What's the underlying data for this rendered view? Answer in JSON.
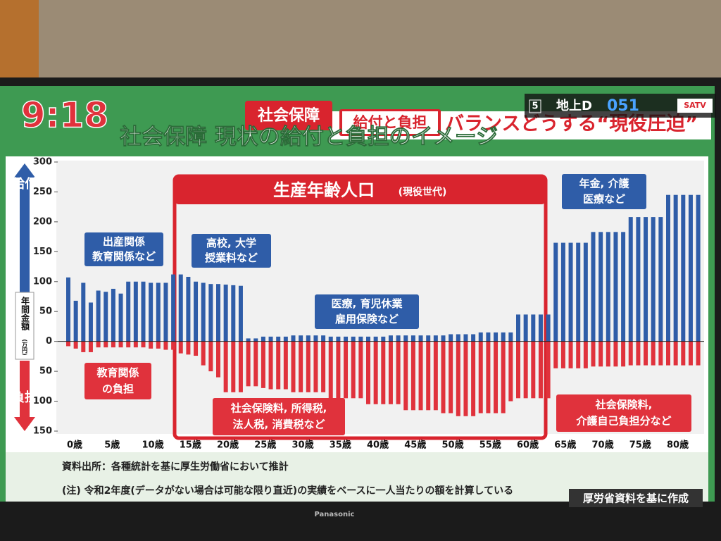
{
  "header": {
    "clock": "9:18",
    "tag": "社会保障",
    "subtag": "給付と負担",
    "headline": "バランスどうする“現役圧迫”",
    "channel_number": "5",
    "channel_type": "地上D",
    "channel": "051",
    "station": "SATV"
  },
  "chart_data": {
    "type": "bar",
    "title": "社会保障 現状の給付と負担のイメージ",
    "ylabel_top": "給付",
    "ylabel_bottom": "負担",
    "ylabel": "年間金額",
    "yunit": "(万円)",
    "categories": [
      "0歳",
      null,
      null,
      null,
      null,
      "5歳",
      null,
      null,
      null,
      null,
      "10歳",
      null,
      null,
      null,
      null,
      "15歳",
      null,
      null,
      null,
      null,
      "20歳",
      null,
      null,
      null,
      null,
      "25歳",
      null,
      null,
      null,
      null,
      "30歳",
      null,
      null,
      null,
      null,
      "35歳",
      null,
      null,
      null,
      null,
      "40歳",
      null,
      null,
      null,
      null,
      "45歳",
      null,
      null,
      null,
      null,
      "50歳",
      null,
      null,
      null,
      null,
      "55歳",
      null,
      null,
      null,
      null,
      "60歳",
      null,
      null,
      null,
      null,
      "65歳",
      null,
      null,
      null,
      null,
      "70歳",
      null,
      null,
      null,
      null,
      "75歳",
      null,
      null,
      null,
      null,
      "80歳",
      null,
      null,
      null,
      null
    ],
    "series": [
      {
        "color": "#2f5da8",
        "values": [
          107,
          68,
          98,
          65,
          85,
          83,
          88,
          80,
          100,
          100,
          100,
          98,
          98,
          98,
          112,
          112,
          108,
          100,
          98,
          96,
          96,
          95,
          94,
          93,
          5,
          5,
          8,
          8,
          8,
          8,
          10,
          10,
          10,
          10,
          10,
          8,
          8,
          8,
          8,
          8,
          8,
          8,
          8,
          10,
          10,
          10,
          10,
          10,
          10,
          10,
          10,
          12,
          12,
          12,
          12,
          15,
          15,
          15,
          15,
          15,
          45,
          45,
          45,
          45,
          45,
          165,
          165,
          165,
          165,
          165,
          183,
          183,
          183,
          183,
          183,
          208,
          208,
          208,
          208,
          208,
          245,
          245,
          245,
          245,
          245
        ]
      },
      {
        "color": "#e0323c",
        "values": [
          -8,
          -12,
          -18,
          -18,
          -10,
          -10,
          -10,
          -10,
          -10,
          -10,
          -10,
          -12,
          -12,
          -14,
          -14,
          -20,
          -22,
          -24,
          -40,
          -50,
          -60,
          -85,
          -85,
          -85,
          -75,
          -75,
          -78,
          -80,
          -80,
          -80,
          -85,
          -85,
          -85,
          -85,
          -85,
          -95,
          -95,
          -95,
          -95,
          -95,
          -105,
          -105,
          -105,
          -105,
          -105,
          -115,
          -115,
          -115,
          -115,
          -115,
          -120,
          -120,
          -125,
          -125,
          -125,
          -120,
          -120,
          -120,
          -120,
          -100,
          -95,
          -95,
          -95,
          -95,
          -95,
          -45,
          -45,
          -45,
          -45,
          -45,
          -42,
          -42,
          -42,
          -42,
          -42,
          -40,
          -40,
          -40,
          -40,
          -40,
          -40,
          -40,
          -40,
          -40,
          -40
        ]
      }
    ],
    "ylim": [
      -150,
      300
    ],
    "yticks": [
      {
        "value": -150,
        "label": "150"
      },
      {
        "value": -100,
        "label": "100"
      },
      {
        "value": -50,
        "label": "50"
      },
      0,
      50,
      100,
      150,
      200,
      250,
      300
    ],
    "grid": false,
    "region_label": "生産年齢人口",
    "region_sublabel": "(現役世代)",
    "annotations": [
      {
        "lines": [
          "出産関係",
          "教育関係など"
        ]
      },
      {
        "lines": [
          "高校, 大学",
          "授業料など"
        ]
      },
      {
        "lines": [
          "医療, 育児休業",
          "雇用保険など"
        ]
      },
      {
        "lines": [
          "年金, 介護",
          "医療など"
        ]
      },
      {
        "lines": [
          "教育関係",
          "の負担"
        ]
      },
      {
        "lines": [
          "社会保険料, 所得税,",
          "法人税, 消費税など"
        ]
      },
      {
        "lines": [
          "社会保険料,",
          "介護自己負担分など"
        ]
      }
    ]
  },
  "footer": {
    "source": "資料出所：各種統計を基に厚生労働省において推計",
    "note": "(注) 令和2年度(データがない場合は可能な限り直近)の実績をベースに一人当たりの額を計算している",
    "credit": "厚労省資料を基に作成",
    "brand": "Panasonic"
  }
}
